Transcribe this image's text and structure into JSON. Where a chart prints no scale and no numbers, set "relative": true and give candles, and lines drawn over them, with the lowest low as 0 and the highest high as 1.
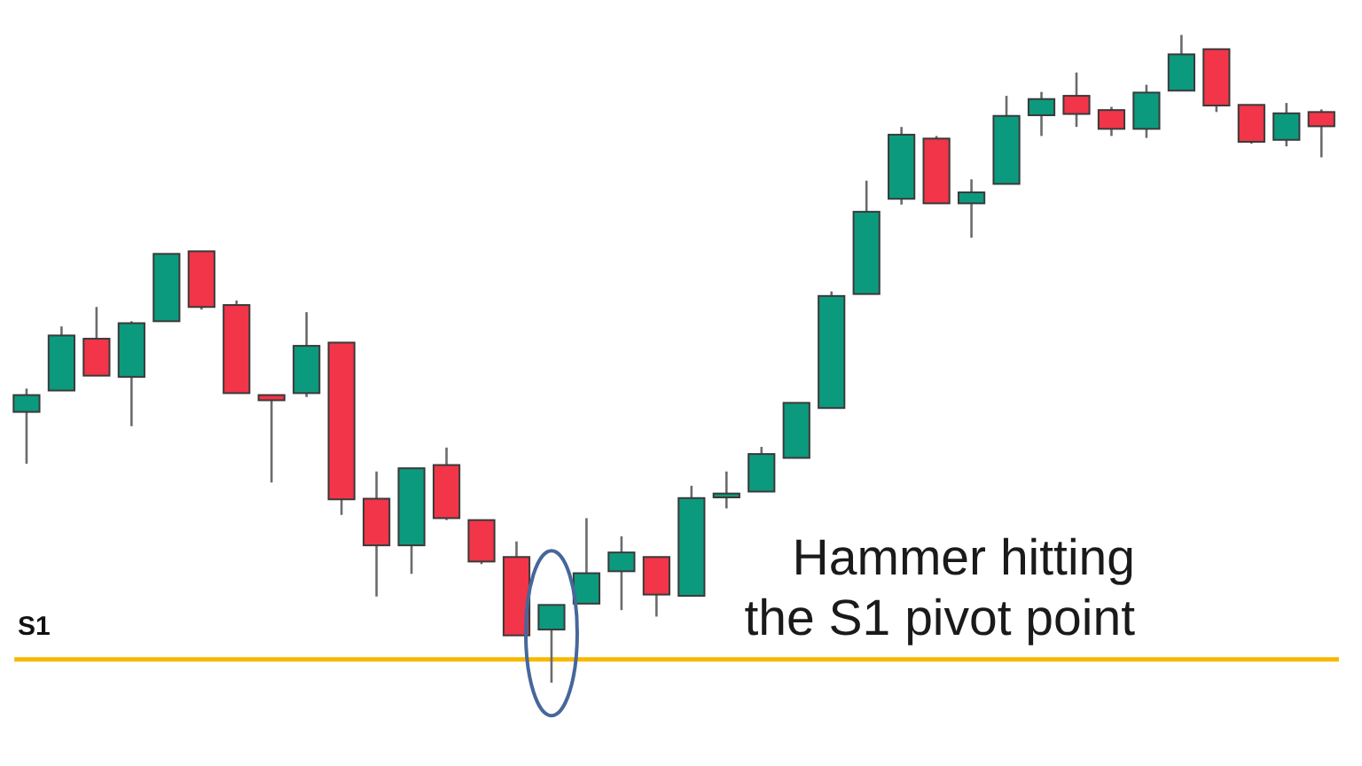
{
  "chart_data": {
    "type": "candlestick",
    "relative": true,
    "categories": [
      null,
      null,
      null,
      null,
      null,
      null,
      null,
      null,
      null,
      null,
      null,
      null,
      null,
      null,
      null,
      null,
      null,
      null,
      null,
      null,
      null,
      null,
      null,
      null,
      null,
      null,
      null,
      null,
      null,
      null,
      null,
      null,
      null,
      null,
      null,
      null,
      null,
      null
    ],
    "ohlc": [
      [
        0.418,
        0.454,
        0.338,
        0.444
      ],
      [
        0.451,
        0.55,
        0.451,
        0.536
      ],
      [
        0.531,
        0.58,
        0.474,
        0.474
      ],
      [
        0.472,
        0.558,
        0.396,
        0.555
      ],
      [
        0.558,
        0.662,
        0.558,
        0.662
      ],
      [
        0.666,
        0.666,
        0.576,
        0.58
      ],
      [
        0.583,
        0.59,
        0.447,
        0.447
      ],
      [
        0.444,
        0.444,
        0.309,
        0.436
      ],
      [
        0.447,
        0.572,
        0.441,
        0.52
      ],
      [
        0.525,
        0.525,
        0.259,
        0.283
      ],
      [
        0.284,
        0.326,
        0.133,
        0.212
      ],
      [
        0.212,
        0.331,
        0.168,
        0.331
      ],
      [
        0.336,
        0.363,
        0.251,
        0.254
      ],
      [
        0.251,
        0.251,
        0.183,
        0.187
      ],
      [
        0.194,
        0.218,
        0.073,
        0.073
      ],
      [
        0.082,
        0.12,
        0,
        0.12
      ],
      [
        0.122,
        0.254,
        0.122,
        0.169
      ],
      [
        0.172,
        0.226,
        0.112,
        0.201
      ],
      [
        0.194,
        0.194,
        0.102,
        0.136
      ],
      [
        0.134,
        0.304,
        0.134,
        0.285
      ],
      [
        0.286,
        0.326,
        0.269,
        0.292
      ],
      [
        0.295,
        0.364,
        0.295,
        0.353
      ],
      [
        0.347,
        0.432,
        0.347,
        0.432
      ],
      [
        0.424,
        0.604,
        0.424,
        0.597
      ],
      [
        0.6,
        0.775,
        0.6,
        0.727
      ],
      [
        0.747,
        0.858,
        0.738,
        0.846
      ],
      [
        0.84,
        0.844,
        0.74,
        0.74
      ],
      [
        0.74,
        0.777,
        0.687,
        0.757
      ],
      [
        0.77,
        0.906,
        0.77,
        0.875
      ],
      [
        0.876,
        0.912,
        0.844,
        0.901
      ],
      [
        0.906,
        0.942,
        0.858,
        0.878
      ],
      [
        0.884,
        0.889,
        0.844,
        0.855
      ],
      [
        0.855,
        0.923,
        0.841,
        0.911
      ],
      [
        0.914,
        1,
        0.914,
        0.97
      ],
      [
        0.978,
        0.978,
        0.881,
        0.891
      ],
      [
        0.892,
        0.892,
        0.832,
        0.835
      ],
      [
        0.838,
        0.895,
        0.828,
        0.879
      ],
      [
        0.881,
        0.885,
        0.811,
        0.859
      ]
    ],
    "colors": [
      "#0c9a7e",
      "#0c9a7e",
      "#f23548",
      "#0c9a7e",
      "#0c9a7e",
      "#f23548",
      "#f23548",
      "#f23548",
      "#0c9a7e",
      "#f23548",
      "#f23548",
      "#0c9a7e",
      "#f23548",
      "#f23548",
      "#f23548",
      "#0c9a7e",
      "#0c9a7e",
      "#0c9a7e",
      "#f23548",
      "#0c9a7e",
      "#0c9a7e",
      "#0c9a7e",
      "#0c9a7e",
      "#0c9a7e",
      "#0c9a7e",
      "#0c9a7e",
      "#f23548",
      "#0c9a7e",
      "#0c9a7e",
      "#0c9a7e",
      "#f23548",
      "#f23548",
      "#0c9a7e",
      "#0c9a7e",
      "#f23548",
      "#f23548",
      "#0c9a7e",
      "#f23548"
    ],
    "ref_lines": [
      {
        "axis": "y",
        "value": 0.036,
        "label": "S1",
        "color": "#f7b800"
      }
    ],
    "annotations": [
      "Hammer hitting\nthe S1 pivot point"
    ]
  }
}
